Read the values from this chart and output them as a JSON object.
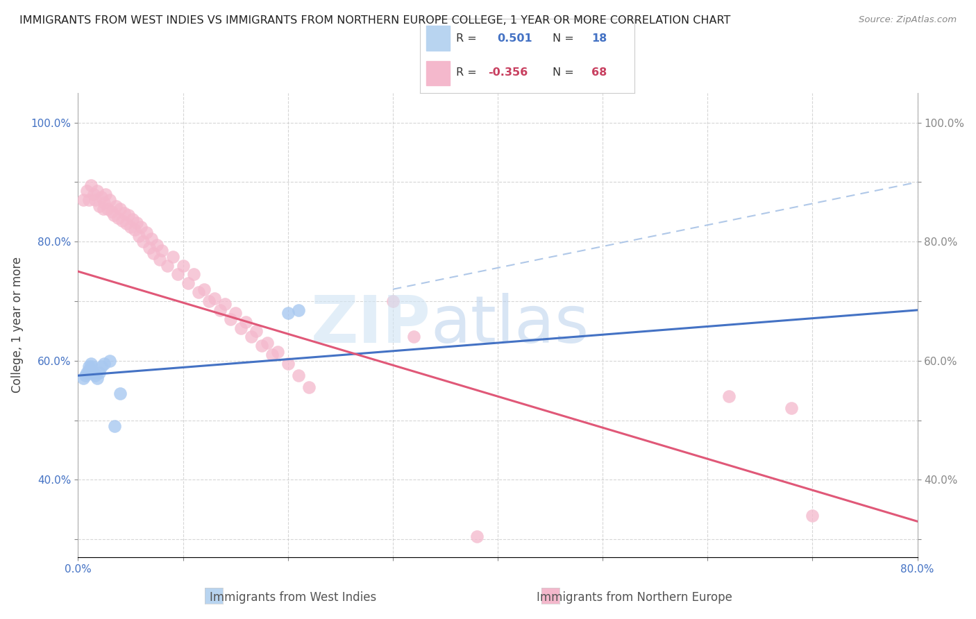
{
  "title": "IMMIGRANTS FROM WEST INDIES VS IMMIGRANTS FROM NORTHERN EUROPE COLLEGE, 1 YEAR OR MORE CORRELATION CHART",
  "source": "Source: ZipAtlas.com",
  "ylabel": "College, 1 year or more",
  "xaxis_label_blue": "Immigrants from West Indies",
  "xaxis_label_pink": "Immigrants from Northern Europe",
  "xlim": [
    0.0,
    0.8
  ],
  "ylim": [
    0.27,
    1.05
  ],
  "R_blue": 0.501,
  "N_blue": 18,
  "R_pink": -0.356,
  "N_pink": 68,
  "blue_scatter_color": "#a8c8f0",
  "pink_scatter_color": "#f4b8cc",
  "blue_line_color": "#4472c4",
  "pink_line_color": "#e05878",
  "dash_line_color": "#b0c8e8",
  "legend_box_blue": "#b8d4f0",
  "legend_box_pink": "#f4b8cc",
  "text_color_blue": "#4472c4",
  "text_color_pink": "#c84060",
  "text_color_label": "#555555",
  "blue_scatter_x": [
    0.005,
    0.007,
    0.008,
    0.01,
    0.01,
    0.012,
    0.013,
    0.015,
    0.016,
    0.018,
    0.02,
    0.022,
    0.025,
    0.03,
    0.035,
    0.04,
    0.2,
    0.21
  ],
  "blue_scatter_y": [
    0.57,
    0.575,
    0.58,
    0.585,
    0.59,
    0.595,
    0.59,
    0.58,
    0.575,
    0.57,
    0.58,
    0.59,
    0.595,
    0.6,
    0.49,
    0.545,
    0.68,
    0.685
  ],
  "pink_scatter_x": [
    0.005,
    0.008,
    0.01,
    0.012,
    0.015,
    0.016,
    0.018,
    0.02,
    0.022,
    0.024,
    0.025,
    0.026,
    0.028,
    0.03,
    0.032,
    0.034,
    0.036,
    0.038,
    0.04,
    0.042,
    0.044,
    0.046,
    0.048,
    0.05,
    0.052,
    0.054,
    0.056,
    0.058,
    0.06,
    0.062,
    0.065,
    0.068,
    0.07,
    0.072,
    0.075,
    0.078,
    0.08,
    0.085,
    0.09,
    0.095,
    0.1,
    0.105,
    0.11,
    0.115,
    0.12,
    0.125,
    0.13,
    0.135,
    0.14,
    0.145,
    0.15,
    0.155,
    0.16,
    0.165,
    0.17,
    0.175,
    0.18,
    0.185,
    0.19,
    0.2,
    0.21,
    0.22,
    0.3,
    0.32,
    0.38,
    0.62,
    0.68,
    0.7
  ],
  "pink_scatter_y": [
    0.87,
    0.885,
    0.87,
    0.895,
    0.88,
    0.87,
    0.885,
    0.86,
    0.875,
    0.855,
    0.865,
    0.88,
    0.855,
    0.87,
    0.85,
    0.845,
    0.86,
    0.84,
    0.855,
    0.835,
    0.848,
    0.83,
    0.845,
    0.825,
    0.838,
    0.82,
    0.832,
    0.81,
    0.825,
    0.8,
    0.815,
    0.79,
    0.805,
    0.78,
    0.795,
    0.77,
    0.785,
    0.76,
    0.775,
    0.745,
    0.76,
    0.73,
    0.745,
    0.715,
    0.72,
    0.7,
    0.705,
    0.685,
    0.695,
    0.67,
    0.68,
    0.655,
    0.665,
    0.64,
    0.65,
    0.625,
    0.63,
    0.61,
    0.615,
    0.595,
    0.575,
    0.555,
    0.7,
    0.64,
    0.305,
    0.54,
    0.52,
    0.34
  ],
  "blue_line_x0": 0.0,
  "blue_line_y0": 0.575,
  "blue_line_x1": 0.8,
  "blue_line_y1": 0.685,
  "pink_line_x0": 0.0,
  "pink_line_y0": 0.75,
  "pink_line_x1": 0.8,
  "pink_line_y1": 0.33,
  "dash_line_x0": 0.3,
  "dash_line_y0": 0.72,
  "dash_line_x1": 0.8,
  "dash_line_y1": 0.9
}
